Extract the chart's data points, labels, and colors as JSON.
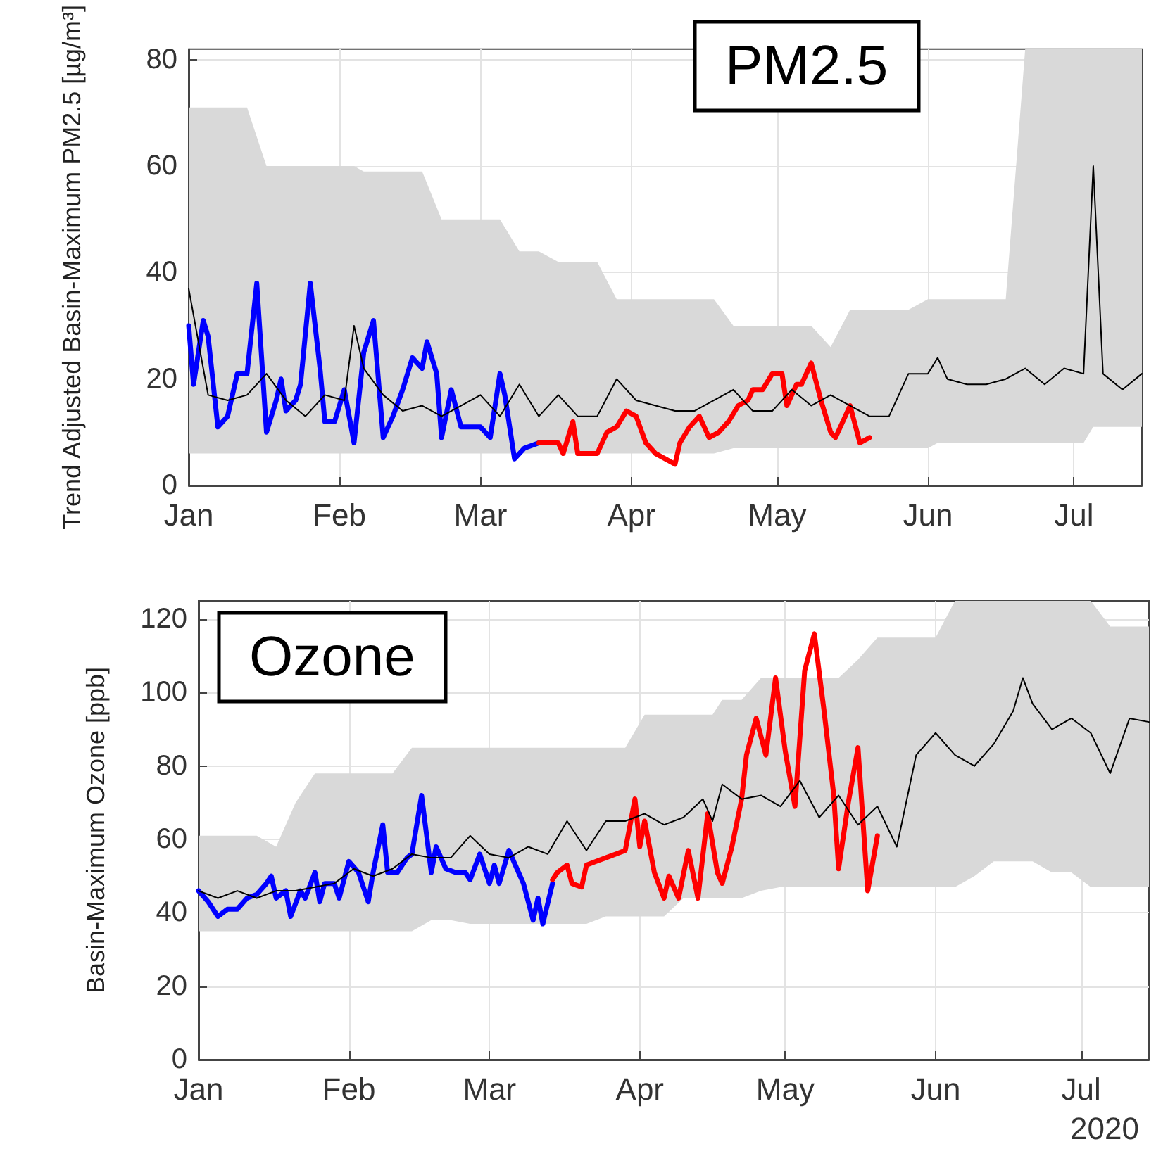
{
  "chart_data": [
    {
      "type": "line",
      "title": "PM2.5",
      "ylabel": "Trend Adjusted Basin-Maximum PM2.5 [µg/m³]",
      "xlim": [
        "2020-01-01",
        "2020-07-15"
      ],
      "xticks": [
        {
          "value": "2020-01-01",
          "label": "Jan"
        },
        {
          "value": "2020-02-01",
          "label": "Feb"
        },
        {
          "value": "2020-03-01",
          "label": "Mar"
        },
        {
          "value": "2020-04-01",
          "label": "Apr"
        },
        {
          "value": "2020-05-01",
          "label": "May"
        },
        {
          "value": "2020-06-01",
          "label": "Jun"
        },
        {
          "value": "2020-07-01",
          "label": "Jul"
        }
      ],
      "ylim": [
        0,
        82
      ],
      "yticks": [
        0,
        20,
        40,
        60,
        80
      ],
      "grid": true,
      "series": [
        {
          "color": "#000000",
          "x": [
            "2020-01-01",
            "2020-01-05",
            "2020-01-09",
            "2020-01-13",
            "2020-01-17",
            "2020-01-21",
            "2020-01-25",
            "2020-01-29",
            "2020-02-02",
            "2020-02-04",
            "2020-02-06",
            "2020-02-10",
            "2020-02-14",
            "2020-02-18",
            "2020-02-22",
            "2020-02-26",
            "2020-03-01",
            "2020-03-05",
            "2020-03-09",
            "2020-03-13",
            "2020-03-17",
            "2020-03-21",
            "2020-03-25",
            "2020-03-29",
            "2020-04-02",
            "2020-04-06",
            "2020-04-10",
            "2020-04-14",
            "2020-04-18",
            "2020-04-22",
            "2020-04-26",
            "2020-04-30",
            "2020-05-04",
            "2020-05-08",
            "2020-05-12",
            "2020-05-16",
            "2020-05-20",
            "2020-05-24",
            "2020-05-28",
            "2020-06-01",
            "2020-06-03",
            "2020-06-05",
            "2020-06-09",
            "2020-06-13",
            "2020-06-17",
            "2020-06-21",
            "2020-06-25",
            "2020-06-29",
            "2020-07-03",
            "2020-07-05",
            "2020-07-07",
            "2020-07-11",
            "2020-07-15"
          ],
          "values": [
            37,
            17,
            16,
            17,
            21,
            16,
            13,
            17,
            16,
            30,
            22,
            17,
            14,
            15,
            13,
            15,
            17,
            13,
            19,
            13,
            17,
            13,
            13,
            20,
            16,
            15,
            14,
            14,
            16,
            18,
            14,
            14,
            18,
            15,
            17,
            15,
            13,
            13,
            21,
            21,
            24,
            20,
            19,
            19,
            20,
            22,
            19,
            22,
            21,
            60,
            21,
            18,
            21
          ],
          "lower": [
            6,
            6,
            6,
            6,
            6,
            6,
            6,
            6,
            6,
            6,
            6,
            6,
            6,
            6,
            6,
            6,
            6,
            6,
            6,
            6,
            6,
            6,
            6,
            6,
            6,
            6,
            6,
            6,
            6,
            7,
            7,
            7,
            7,
            7,
            7,
            7,
            7,
            7,
            7,
            7,
            8,
            8,
            8,
            8,
            8,
            8,
            8,
            8,
            8,
            11,
            11,
            11,
            11
          ],
          "upper": [
            71,
            71,
            71,
            71,
            60,
            60,
            60,
            60,
            60,
            60,
            59,
            59,
            59,
            59,
            50,
            50,
            50,
            50,
            44,
            44,
            42,
            42,
            42,
            35,
            35,
            35,
            35,
            35,
            35,
            30,
            30,
            30,
            30,
            30,
            26,
            33,
            33,
            33,
            33,
            35,
            35,
            35,
            35,
            35,
            35,
            82,
            82,
            82,
            82,
            82,
            82,
            82,
            82
          ]
        },
        {
          "color": "#0000ff",
          "x": [
            "2020-01-01",
            "2020-01-02",
            "2020-01-04",
            "2020-01-05",
            "2020-01-07",
            "2020-01-09",
            "2020-01-11",
            "2020-01-13",
            "2020-01-15",
            "2020-01-17",
            "2020-01-19",
            "2020-01-20",
            "2020-01-21",
            "2020-01-23",
            "2020-01-24",
            "2020-01-26",
            "2020-01-28",
            "2020-01-29",
            "2020-01-31",
            "2020-02-02",
            "2020-02-04",
            "2020-02-06",
            "2020-02-08",
            "2020-02-10",
            "2020-02-12",
            "2020-02-14",
            "2020-02-16",
            "2020-02-18",
            "2020-02-19",
            "2020-02-21",
            "2020-02-22",
            "2020-02-24",
            "2020-02-26",
            "2020-02-28",
            "2020-03-01",
            "2020-03-03",
            "2020-03-05",
            "2020-03-06",
            "2020-03-08",
            "2020-03-10",
            "2020-03-13"
          ],
          "values": [
            30,
            19,
            31,
            28,
            11,
            13,
            21,
            21,
            38,
            10,
            16,
            20,
            14,
            16,
            19,
            38,
            22,
            12,
            12,
            18,
            8,
            25,
            31,
            9,
            13,
            18,
            24,
            22,
            27,
            21,
            9,
            18,
            11,
            11,
            11,
            9,
            21,
            17,
            5,
            7,
            8
          ]
        },
        {
          "color": "#ff0000",
          "x": [
            "2020-03-13",
            "2020-03-15",
            "2020-03-17",
            "2020-03-18",
            "2020-03-20",
            "2020-03-21",
            "2020-03-23",
            "2020-03-25",
            "2020-03-27",
            "2020-03-29",
            "2020-03-31",
            "2020-04-02",
            "2020-04-04",
            "2020-04-06",
            "2020-04-08",
            "2020-04-10",
            "2020-04-11",
            "2020-04-13",
            "2020-04-15",
            "2020-04-17",
            "2020-04-19",
            "2020-04-21",
            "2020-04-23",
            "2020-04-25",
            "2020-04-26",
            "2020-04-28",
            "2020-04-30",
            "2020-05-02",
            "2020-05-03",
            "2020-05-05",
            "2020-05-06",
            "2020-05-08",
            "2020-05-10",
            "2020-05-12",
            "2020-05-13",
            "2020-05-15",
            "2020-05-16",
            "2020-05-18",
            "2020-05-20"
          ],
          "values": [
            8,
            8,
            8,
            6,
            12,
            6,
            6,
            6,
            10,
            11,
            14,
            13,
            8,
            6,
            5,
            4,
            8,
            11,
            13,
            9,
            10,
            12,
            15,
            16,
            18,
            18,
            21,
            21,
            15,
            19,
            19,
            23,
            16,
            10,
            9,
            13,
            15,
            8,
            9
          ]
        }
      ]
    },
    {
      "type": "line",
      "title": "Ozone",
      "ylabel": "Basin-Maximum Ozone [ppb]",
      "xlabel": "2020",
      "xlim": [
        "2020-01-01",
        "2020-07-15"
      ],
      "xticks": [
        {
          "value": "2020-01-01",
          "label": "Jan"
        },
        {
          "value": "2020-02-01",
          "label": "Feb"
        },
        {
          "value": "2020-03-01",
          "label": "Mar"
        },
        {
          "value": "2020-04-01",
          "label": "Apr"
        },
        {
          "value": "2020-05-01",
          "label": "May"
        },
        {
          "value": "2020-06-01",
          "label": "Jun"
        },
        {
          "value": "2020-07-01",
          "label": "Jul"
        }
      ],
      "ylim": [
        0,
        125
      ],
      "yticks": [
        0,
        20,
        40,
        60,
        80,
        100,
        120
      ],
      "grid": true,
      "series": [
        {
          "color": "#000000",
          "x": [
            "2020-01-01",
            "2020-01-05",
            "2020-01-09",
            "2020-01-13",
            "2020-01-17",
            "2020-01-21",
            "2020-01-25",
            "2020-01-29",
            "2020-02-02",
            "2020-02-06",
            "2020-02-10",
            "2020-02-14",
            "2020-02-18",
            "2020-02-22",
            "2020-02-26",
            "2020-03-01",
            "2020-03-05",
            "2020-03-09",
            "2020-03-13",
            "2020-03-17",
            "2020-03-21",
            "2020-03-25",
            "2020-03-29",
            "2020-04-02",
            "2020-04-06",
            "2020-04-10",
            "2020-04-14",
            "2020-04-16",
            "2020-04-18",
            "2020-04-22",
            "2020-04-26",
            "2020-04-30",
            "2020-05-04",
            "2020-05-08",
            "2020-05-12",
            "2020-05-16",
            "2020-05-20",
            "2020-05-24",
            "2020-05-28",
            "2020-06-01",
            "2020-06-05",
            "2020-06-09",
            "2020-06-13",
            "2020-06-17",
            "2020-06-19",
            "2020-06-21",
            "2020-06-25",
            "2020-06-29",
            "2020-07-03",
            "2020-07-07",
            "2020-07-11",
            "2020-07-15"
          ],
          "values": [
            46,
            44,
            46,
            44,
            46,
            46,
            47,
            48,
            52,
            50,
            52,
            56,
            55,
            55,
            61,
            56,
            55,
            58,
            56,
            65,
            57,
            65,
            65,
            67,
            64,
            66,
            71,
            65,
            75,
            71,
            72,
            69,
            76,
            66,
            72,
            64,
            69,
            58,
            83,
            89,
            83,
            80,
            86,
            95,
            104,
            97,
            90,
            93,
            89,
            78,
            93,
            92
          ],
          "lower": [
            35,
            35,
            35,
            35,
            35,
            35,
            35,
            35,
            35,
            35,
            35,
            35,
            38,
            38,
            37,
            37,
            37,
            37,
            37,
            37,
            37,
            39,
            39,
            39,
            39,
            44,
            44,
            44,
            44,
            44,
            46,
            47,
            47,
            47,
            47,
            47,
            47,
            47,
            47,
            47,
            47,
            50,
            54,
            54,
            54,
            54,
            51,
            51,
            47,
            47,
            47,
            47
          ],
          "upper": [
            61,
            61,
            61,
            61,
            58,
            70,
            78,
            78,
            78,
            78,
            78,
            85,
            85,
            85,
            85,
            85,
            85,
            85,
            85,
            85,
            85,
            85,
            85,
            94,
            94,
            94,
            94,
            94,
            98,
            98,
            104,
            104,
            104,
            104,
            104,
            109,
            115,
            115,
            115,
            115,
            125,
            125,
            125,
            125,
            125,
            125,
            125,
            125,
            125,
            118,
            118,
            118
          ]
        },
        {
          "color": "#0000ff",
          "x": [
            "2020-01-01",
            "2020-01-03",
            "2020-01-05",
            "2020-01-07",
            "2020-01-09",
            "2020-01-11",
            "2020-01-13",
            "2020-01-15",
            "2020-01-16",
            "2020-01-17",
            "2020-01-19",
            "2020-01-20",
            "2020-01-22",
            "2020-01-23",
            "2020-01-25",
            "2020-01-26",
            "2020-01-27",
            "2020-01-29",
            "2020-01-30",
            "2020-02-01",
            "2020-02-03",
            "2020-02-05",
            "2020-02-06",
            "2020-02-08",
            "2020-02-09",
            "2020-02-11",
            "2020-02-13",
            "2020-02-14",
            "2020-02-16",
            "2020-02-18",
            "2020-02-19",
            "2020-02-21",
            "2020-02-23",
            "2020-02-25",
            "2020-02-26",
            "2020-02-28",
            "2020-03-01",
            "2020-03-02",
            "2020-03-03",
            "2020-03-05",
            "2020-03-07",
            "2020-03-08",
            "2020-03-10",
            "2020-03-11",
            "2020-03-12",
            "2020-03-14"
          ],
          "values": [
            46,
            43,
            39,
            41,
            41,
            44,
            45,
            48,
            50,
            44,
            46,
            39,
            46,
            44,
            51,
            43,
            48,
            48,
            44,
            54,
            51,
            43,
            51,
            64,
            51,
            51,
            55,
            56,
            72,
            51,
            58,
            52,
            51,
            51,
            49,
            56,
            48,
            53,
            48,
            57,
            51,
            48,
            38,
            44,
            37,
            48
          ]
        },
        {
          "color": "#ff0000",
          "x": [
            "2020-03-14",
            "2020-03-15",
            "2020-03-17",
            "2020-03-18",
            "2020-03-20",
            "2020-03-21",
            "2020-03-23",
            "2020-03-25",
            "2020-03-27",
            "2020-03-29",
            "2020-03-31",
            "2020-04-01",
            "2020-04-02",
            "2020-04-04",
            "2020-04-06",
            "2020-04-07",
            "2020-04-09",
            "2020-04-11",
            "2020-04-13",
            "2020-04-15",
            "2020-04-17",
            "2020-04-18",
            "2020-04-20",
            "2020-04-22",
            "2020-04-23",
            "2020-04-25",
            "2020-04-27",
            "2020-04-29",
            "2020-05-01",
            "2020-05-03",
            "2020-05-05",
            "2020-05-07",
            "2020-05-09",
            "2020-05-11",
            "2020-05-12",
            "2020-05-14",
            "2020-05-16",
            "2020-05-18",
            "2020-05-20"
          ],
          "values": [
            49,
            51,
            53,
            48,
            47,
            53,
            54,
            55,
            56,
            57,
            71,
            58,
            65,
            51,
            44,
            50,
            44,
            57,
            44,
            67,
            51,
            48,
            58,
            71,
            83,
            93,
            83,
            104,
            84,
            69,
            106,
            116,
            95,
            72,
            52,
            70,
            85,
            46,
            61
          ]
        }
      ]
    }
  ]
}
